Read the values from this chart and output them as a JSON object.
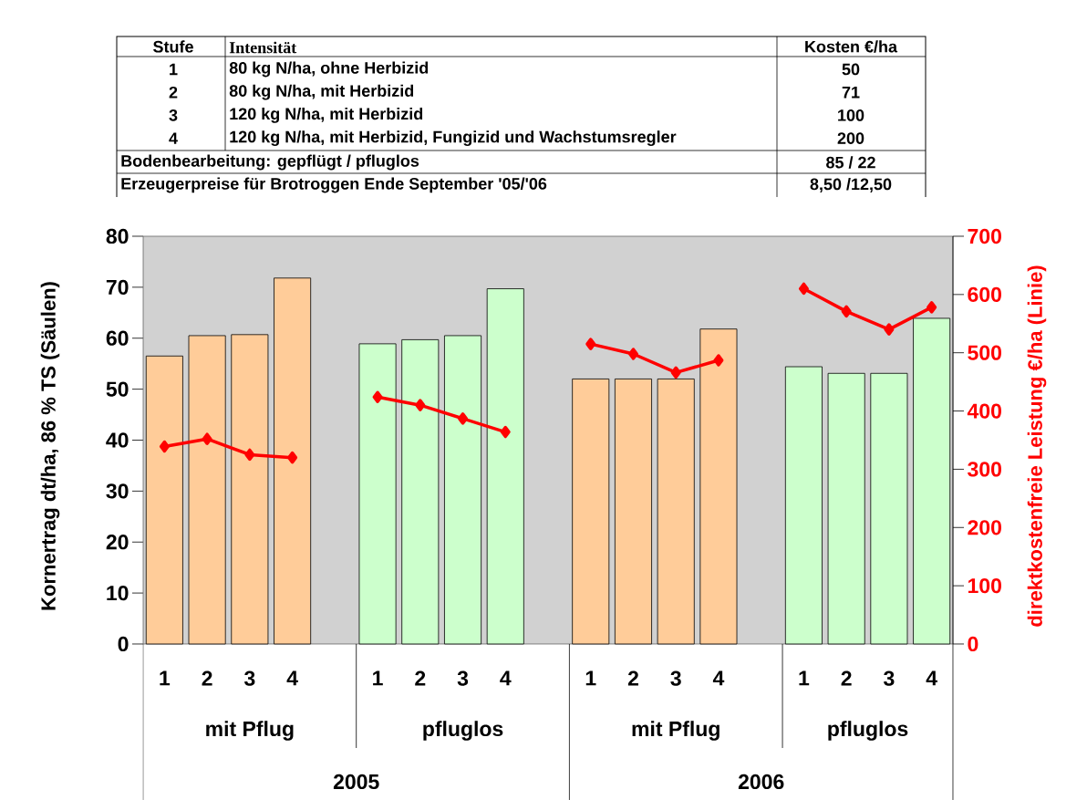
{
  "chart_data": {
    "type": "bar",
    "ylabel": "Kornertrag dt/ha, 86 % TS (Säulen)",
    "y2label": "direktkostenfreie Leistung €/ha (Linie)",
    "categories": [
      "1",
      "2",
      "3",
      "4",
      null,
      "1",
      "2",
      "3",
      "4",
      null,
      "1",
      "2",
      "3",
      "4",
      null,
      "1",
      "2",
      "3",
      "4"
    ],
    "series": [
      {
        "colors": [
          "#ffcc99",
          "#ffcc99",
          "#ffcc99",
          "#ffcc99",
          null,
          "#ccffcc",
          "#ccffcc",
          "#ccffcc",
          "#ccffcc",
          null,
          "#ffcc99",
          "#ffcc99",
          "#ffcc99",
          "#ffcc99",
          null,
          "#ccffcc",
          "#ccffcc",
          "#ccffcc",
          "#ccffcc"
        ],
        "values": [
          56.5,
          60.5,
          60.7,
          71.8,
          null,
          58.9,
          59.7,
          60.5,
          69.7,
          null,
          52.0,
          52.0,
          52.0,
          61.8,
          null,
          54.4,
          53.1,
          53.1,
          63.9
        ]
      },
      {
        "type": "line",
        "axis": "y2",
        "color": "#ff0000",
        "values": [
          339,
          352,
          325,
          320,
          null,
          424,
          410,
          387,
          364,
          null,
          515,
          498,
          466,
          487,
          null,
          610,
          571,
          540,
          578
        ]
      }
    ],
    "ylim": [
      0,
      80
    ],
    "yticks": [
      0,
      10,
      20,
      30,
      40,
      50,
      60,
      70,
      80
    ],
    "y2lim": [
      0,
      700
    ],
    "y2ticks": [
      0,
      100,
      200,
      300,
      400,
      500,
      600,
      700
    ],
    "marker": "diamond",
    "annotations": [
      "Stufe",
      "Intensität",
      "Kosten €/ha",
      "1",
      "80 kg N/ha, ohne Herbizid",
      "50",
      "2",
      "80 kg N/ha, mit Herbizid",
      "71",
      "3",
      "120 kg N/ha, mit Herbizid",
      "100",
      "4",
      "120 kg N/ha, mit Herbizid, Fungizid und Wachstumsregler",
      "200",
      "Bodenbearbeitung: gepflügt / pfluglos",
      "85 / 22",
      "Erzeugerpreise für Brotroggen Ende September '05/'06",
      "8,50 /12,50",
      "mit Pflug",
      "pfluglos",
      "mit Pflug",
      "pfluglos",
      "2005",
      "2006"
    ]
  }
}
